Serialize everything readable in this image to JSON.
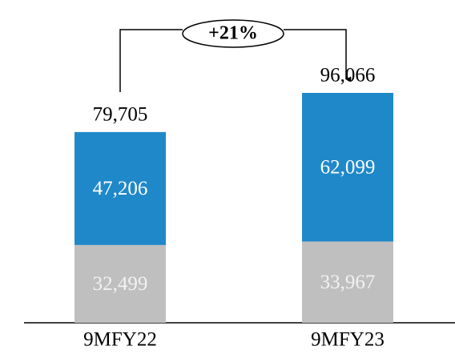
{
  "chart_data": {
    "type": "stacked_bar",
    "categories": [
      "9MFY22",
      "9MFY23"
    ],
    "series": [
      {
        "color": "#bfbfbf",
        "values": [
          32499,
          33967
        ],
        "value_labels": [
          "32,499",
          "33,967"
        ]
      },
      {
        "color": "#1f88c9",
        "values": [
          47206,
          62099
        ],
        "value_labels": [
          "47,206",
          "62,099"
        ]
      }
    ],
    "totals": [
      79705,
      96066
    ],
    "total_labels": [
      "79,705",
      "96,066"
    ],
    "annotation": "+21%"
  }
}
